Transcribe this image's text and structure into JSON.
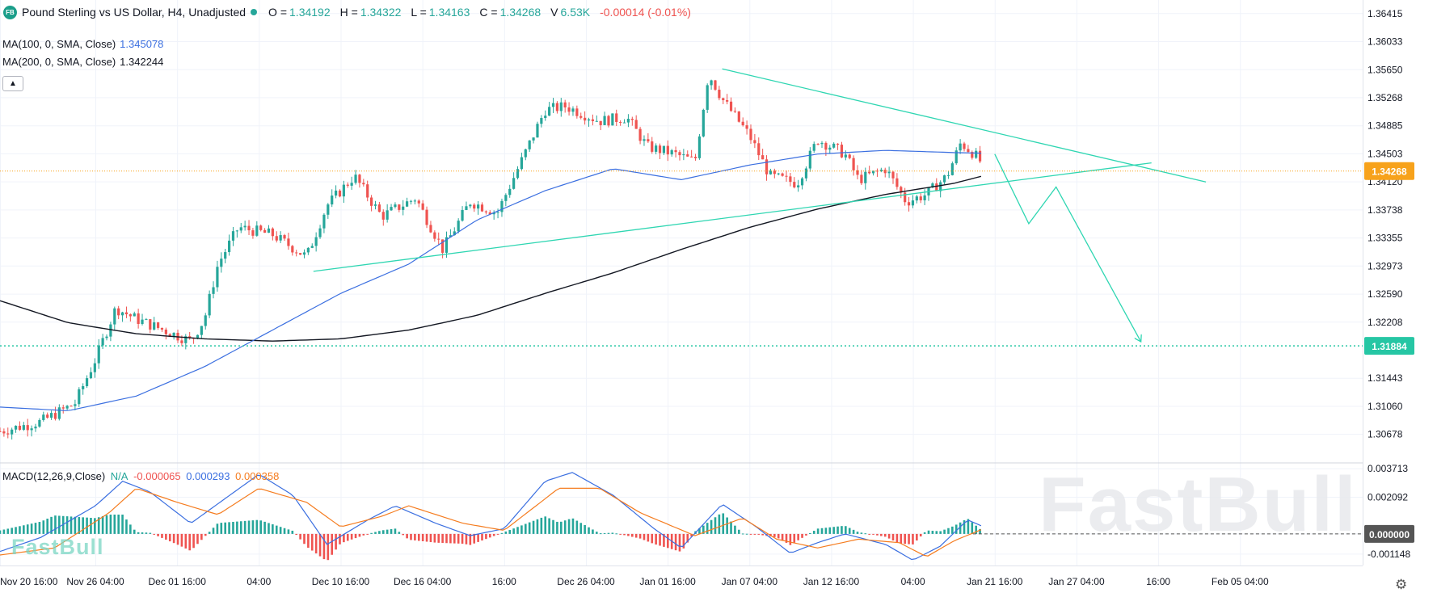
{
  "header": {
    "logo": "FB",
    "title": "Pound Sterling vs US Dollar, H4, Unadjusted",
    "status_color": "#26a69a",
    "open_label": "O =",
    "open": "1.34192",
    "high_label": "H =",
    "high": "1.34322",
    "low_label": "L =",
    "low": "1.34163",
    "close_label": "C =",
    "close": "1.34268",
    "volume_label": "V",
    "volume": "6.53K",
    "change": "-0.00014 (-0.01%)",
    "up_color": "#26a69a",
    "down_color": "#ef5350"
  },
  "indicators": {
    "ma100": {
      "label": "MA(100, 0, SMA, Close)",
      "value": "1.345078",
      "color": "#3b6fe0"
    },
    "ma200": {
      "label": "MA(200, 0, SMA, Close)",
      "value": "1.342244",
      "color": "#131722"
    },
    "collapse_icon": "chevron-up-icon",
    "macd": {
      "label": "MACD(12,26,9,Close)",
      "na": "N/A",
      "hist": "-0.000065",
      "macd_line": "0.000293",
      "signal": "0.000358",
      "macd_color": "#3b6fe0",
      "signal_color": "#f57c1f"
    }
  },
  "watermark": {
    "small": "FastBull",
    "big": "FastBull"
  },
  "settings_icon": "gear-icon",
  "chart_data": {
    "type": "candlestick",
    "title": "Pound Sterling vs US Dollar, H4, Unadjusted",
    "price_axis": {
      "range": [
        1.303,
        1.366
      ],
      "ticks": [
        "1.36415",
        "1.36033",
        "1.35650",
        "1.35268",
        "1.34885",
        "1.34503",
        "1.34120",
        "1.33738",
        "1.33355",
        "1.32973",
        "1.32590",
        "1.32208",
        "1.31443",
        "1.31060",
        "1.30678"
      ]
    },
    "current_price": {
      "value": 1.34268,
      "label": "1.34268",
      "color": "#f7a21b"
    },
    "target_price": {
      "value": 1.31884,
      "label": "1.31884",
      "color": "#26c6a4"
    },
    "time_axis": {
      "labels": [
        "Nov 20 16:00",
        "Nov 26 04:00",
        "Dec 01 16:00",
        "04:00",
        "Dec 10 16:00",
        "Dec 16 04:00",
        "16:00",
        "Dec 26 04:00",
        "Jan 01 16:00",
        "Jan 07 04:00",
        "Jan 12 16:00",
        "04:00",
        "Jan 21 16:00",
        "Jan 27 04:00",
        "16:00",
        "Feb 05 04:00"
      ],
      "label_fracs": [
        0.0,
        0.07,
        0.13,
        0.19,
        0.25,
        0.31,
        0.37,
        0.43,
        0.49,
        0.55,
        0.61,
        0.67,
        0.73,
        0.79,
        0.85,
        0.91
      ],
      "last_candle_frac": 0.72
    },
    "price_keypoints": [
      [
        0.0,
        1.3072
      ],
      [
        0.03,
        1.3085
      ],
      [
        0.055,
        1.311
      ],
      [
        0.07,
        1.317
      ],
      [
        0.085,
        1.324
      ],
      [
        0.1,
        1.3225
      ],
      [
        0.12,
        1.321
      ],
      [
        0.14,
        1.3195
      ],
      [
        0.15,
        1.3225
      ],
      [
        0.16,
        1.33
      ],
      [
        0.175,
        1.335
      ],
      [
        0.2,
        1.334
      ],
      [
        0.225,
        1.331
      ],
      [
        0.24,
        1.338
      ],
      [
        0.26,
        1.342
      ],
      [
        0.28,
        1.3365
      ],
      [
        0.305,
        1.339
      ],
      [
        0.325,
        1.332
      ],
      [
        0.345,
        1.3385
      ],
      [
        0.365,
        1.337
      ],
      [
        0.38,
        1.343
      ],
      [
        0.4,
        1.351
      ],
      [
        0.415,
        1.3515
      ],
      [
        0.44,
        1.3495
      ],
      [
        0.46,
        1.35
      ],
      [
        0.475,
        1.346
      ],
      [
        0.495,
        1.345
      ],
      [
        0.51,
        1.344
      ],
      [
        0.52,
        1.356
      ],
      [
        0.53,
        1.3525
      ],
      [
        0.55,
        1.3475
      ],
      [
        0.565,
        1.342
      ],
      [
        0.585,
        1.341
      ],
      [
        0.6,
        1.347
      ],
      [
        0.62,
        1.345
      ],
      [
        0.63,
        1.3415
      ],
      [
        0.65,
        1.343
      ],
      [
        0.665,
        1.3385
      ],
      [
        0.68,
        1.3395
      ],
      [
        0.695,
        1.342
      ],
      [
        0.705,
        1.3465
      ],
      [
        0.715,
        1.345
      ],
      [
        0.725,
        1.3427
      ]
    ],
    "ma100_keypoints": [
      [
        0.0,
        1.3105
      ],
      [
        0.05,
        1.31
      ],
      [
        0.1,
        1.312
      ],
      [
        0.15,
        1.316
      ],
      [
        0.2,
        1.321
      ],
      [
        0.25,
        1.326
      ],
      [
        0.3,
        1.33
      ],
      [
        0.35,
        1.336
      ],
      [
        0.4,
        1.34
      ],
      [
        0.45,
        1.343
      ],
      [
        0.5,
        1.3415
      ],
      [
        0.55,
        1.3435
      ],
      [
        0.6,
        1.345
      ],
      [
        0.65,
        1.3455
      ],
      [
        0.7,
        1.3452
      ],
      [
        0.725,
        1.3451
      ]
    ],
    "ma200_keypoints": [
      [
        0.0,
        1.325
      ],
      [
        0.05,
        1.322
      ],
      [
        0.1,
        1.3205
      ],
      [
        0.15,
        1.3198
      ],
      [
        0.2,
        1.3195
      ],
      [
        0.25,
        1.3198
      ],
      [
        0.3,
        1.321
      ],
      [
        0.35,
        1.323
      ],
      [
        0.4,
        1.326
      ],
      [
        0.45,
        1.3288
      ],
      [
        0.5,
        1.332
      ],
      [
        0.55,
        1.335
      ],
      [
        0.6,
        1.3375
      ],
      [
        0.65,
        1.3395
      ],
      [
        0.7,
        1.341
      ],
      [
        0.725,
        1.3422
      ]
    ],
    "macd_panel": {
      "range": [
        -0.0018,
        0.004
      ],
      "ticks": [
        "0.003713",
        "0.002092",
        "0.000000",
        "-0.001148"
      ],
      "current_label": "0.000000",
      "macd_keypoints": [
        [
          0.0,
          -0.001
        ],
        [
          0.03,
          -0.0002
        ],
        [
          0.07,
          0.0016
        ],
        [
          0.09,
          0.003
        ],
        [
          0.11,
          0.0024
        ],
        [
          0.14,
          0.0006
        ],
        [
          0.165,
          0.002
        ],
        [
          0.19,
          0.0034
        ],
        [
          0.215,
          0.0022
        ],
        [
          0.24,
          -0.0006
        ],
        [
          0.27,
          0.0008
        ],
        [
          0.29,
          0.0016
        ],
        [
          0.32,
          0.0006
        ],
        [
          0.345,
          -0.0001
        ],
        [
          0.37,
          0.0003
        ],
        [
          0.4,
          0.003
        ],
        [
          0.42,
          0.0035
        ],
        [
          0.45,
          0.0022
        ],
        [
          0.48,
          0.0003
        ],
        [
          0.5,
          -0.0008
        ],
        [
          0.53,
          0.0017
        ],
        [
          0.555,
          0.0004
        ],
        [
          0.58,
          -0.0011
        ],
        [
          0.6,
          -0.0005
        ],
        [
          0.62,
          0.0
        ],
        [
          0.65,
          -0.0006
        ],
        [
          0.67,
          -0.0015
        ],
        [
          0.69,
          -0.0007
        ],
        [
          0.71,
          0.0008
        ],
        [
          0.725,
          0.0003
        ]
      ],
      "signal_keypoints": [
        [
          0.0,
          -0.0012
        ],
        [
          0.04,
          -0.0008
        ],
        [
          0.08,
          0.0012
        ],
        [
          0.1,
          0.0026
        ],
        [
          0.13,
          0.0018
        ],
        [
          0.16,
          0.0011
        ],
        [
          0.19,
          0.0026
        ],
        [
          0.225,
          0.0018
        ],
        [
          0.25,
          0.0004
        ],
        [
          0.28,
          0.001
        ],
        [
          0.3,
          0.0016
        ],
        [
          0.34,
          0.0006
        ],
        [
          0.37,
          0.0002
        ],
        [
          0.41,
          0.0026
        ],
        [
          0.44,
          0.0026
        ],
        [
          0.47,
          0.0012
        ],
        [
          0.51,
          -0.0001
        ],
        [
          0.545,
          0.0009
        ],
        [
          0.57,
          -0.0003
        ],
        [
          0.6,
          -0.0008
        ],
        [
          0.63,
          -0.0003
        ],
        [
          0.66,
          -0.0005
        ],
        [
          0.68,
          -0.0013
        ],
        [
          0.7,
          -0.0004
        ],
        [
          0.725,
          0.0004
        ]
      ]
    },
    "drawings": {
      "color": "#2fd6b2",
      "resistance_line": [
        [
          0.53,
          1.3566
        ],
        [
          0.885,
          1.3412
        ]
      ],
      "support_line": [
        [
          0.23,
          1.329
        ],
        [
          0.845,
          1.3438
        ]
      ],
      "projection_path": [
        [
          0.73,
          1.345
        ],
        [
          0.755,
          1.3355
        ],
        [
          0.775,
          1.3405
        ],
        [
          0.837,
          1.3195
        ]
      ]
    }
  }
}
